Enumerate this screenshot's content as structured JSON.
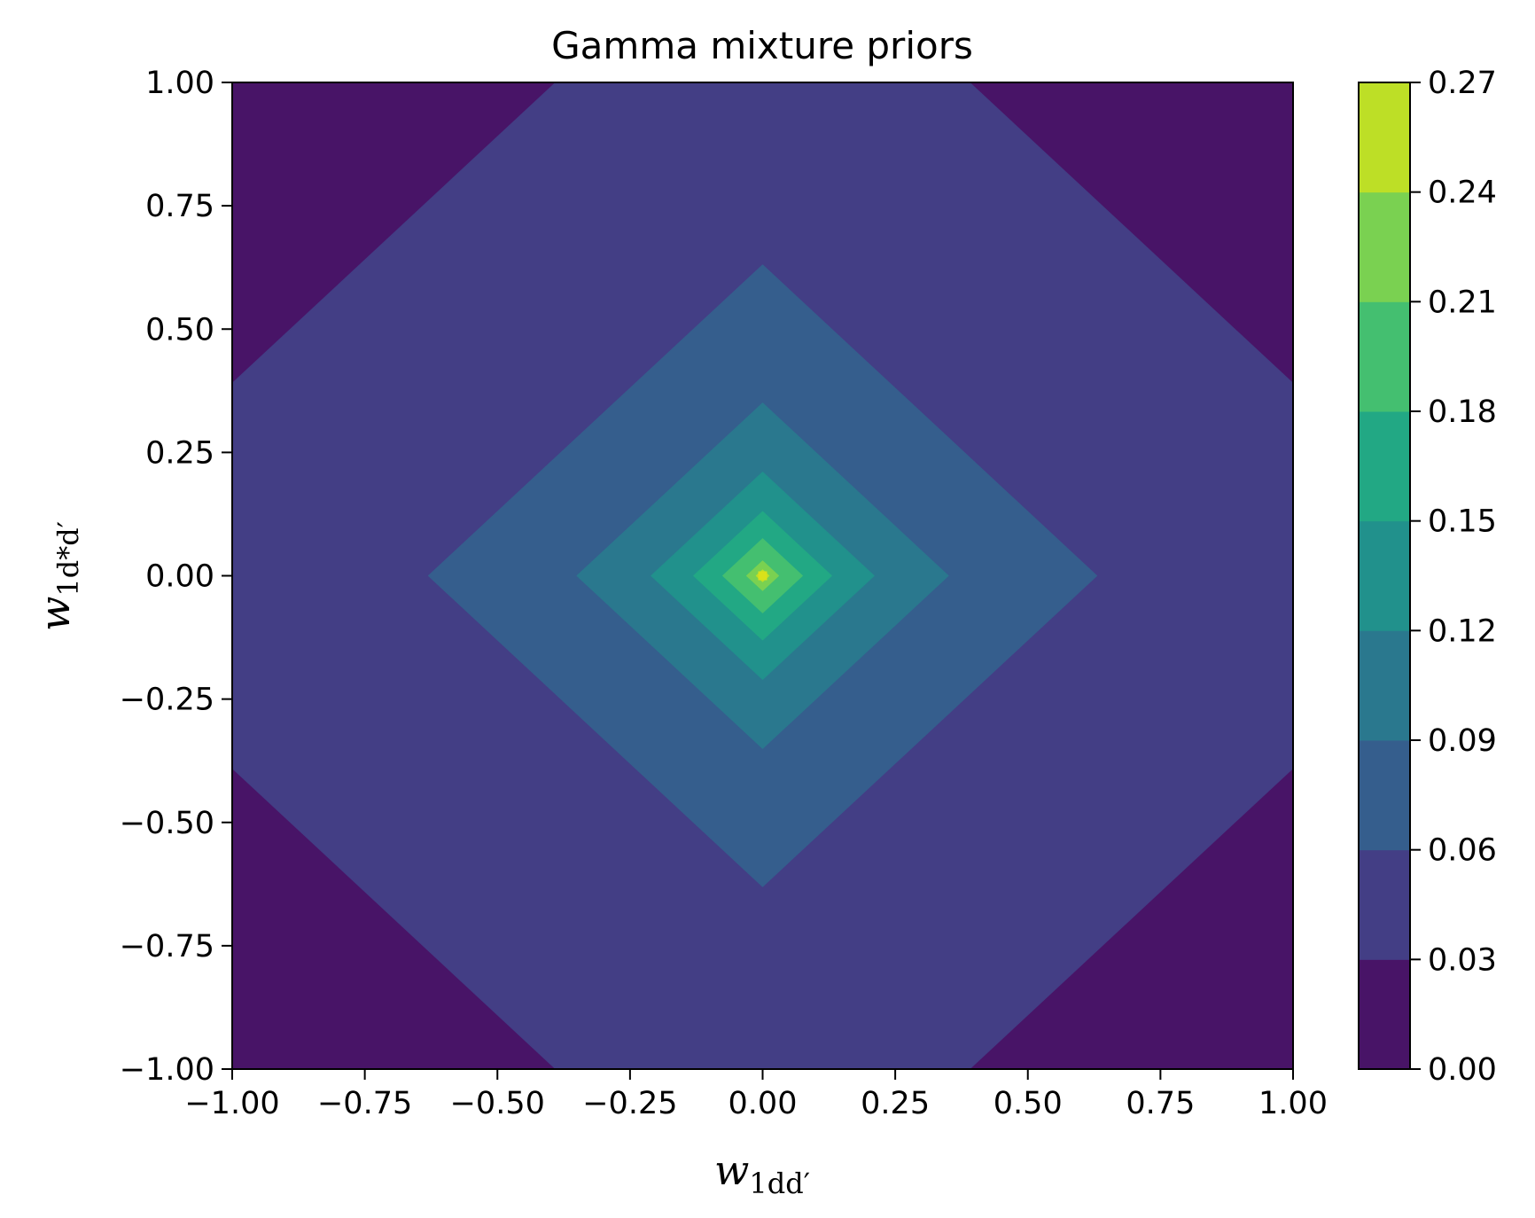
{
  "chart_data": {
    "type": "contour",
    "title": "Gamma mixture priors",
    "xlabel": "w",
    "xlabel_sub": "1dd′",
    "ylabel": "w",
    "ylabel_sub": "1d*d′",
    "xlim": [
      -1.0,
      1.0
    ],
    "ylim": [
      -1.0,
      1.0
    ],
    "x_ticks": [
      -1.0,
      -0.75,
      -0.5,
      -0.25,
      0.0,
      0.25,
      0.5,
      0.75,
      1.0
    ],
    "x_tick_labels": [
      "−1.00",
      "−0.75",
      "−0.50",
      "−0.25",
      "0.00",
      "0.25",
      "0.50",
      "0.75",
      "1.00"
    ],
    "y_ticks": [
      -1.0,
      -0.75,
      -0.5,
      -0.25,
      0.0,
      0.25,
      0.5,
      0.75,
      1.0
    ],
    "y_tick_labels": [
      "−1.00",
      "−0.75",
      "−0.50",
      "−0.25",
      "0.00",
      "0.25",
      "0.50",
      "0.75",
      "1.00"
    ],
    "levels": [
      0.0,
      0.03,
      0.06,
      0.09,
      0.12,
      0.15,
      0.18,
      0.21,
      0.24,
      0.27
    ],
    "colorbar_tick_labels": [
      "0.00",
      "0.03",
      "0.06",
      "0.09",
      "0.12",
      "0.15",
      "0.18",
      "0.21",
      "0.24",
      "0.27"
    ],
    "colormap": "viridis",
    "level_colors": [
      "#481467",
      "#433e85",
      "#355e8d",
      "#2a788e",
      "#21918c",
      "#22a884",
      "#44bf70",
      "#7ad151",
      "#bddf26",
      "#d9e11a"
    ],
    "contour_half_widths": [
      1.39,
      0.63,
      0.35,
      0.21,
      0.13,
      0.075,
      0.03,
      0.012
    ],
    "shape": "diamond (|x| + |y| constant), centered at (0, 0)"
  }
}
